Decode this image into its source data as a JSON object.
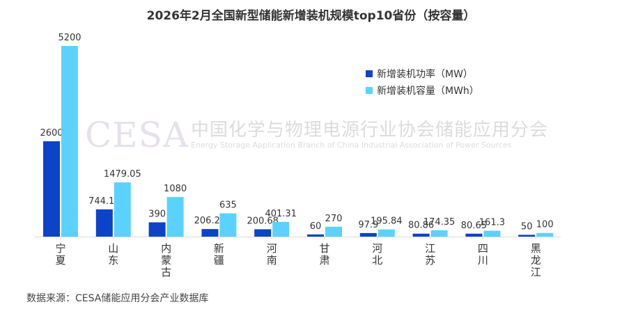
{
  "chart_data": {
    "type": "bar",
    "title": "2026年2月全国新型储能新增装机规模top10省份（按容量）",
    "categories": [
      "宁夏",
      "山东",
      "内蒙古",
      "新疆",
      "河南",
      "甘肃",
      "河北",
      "江苏",
      "四川",
      "黑龙江"
    ],
    "series": [
      {
        "name": "新增装机功率（MW）",
        "color": "#0c43c8",
        "values": [
          2600,
          744.12,
          390,
          206.25,
          200.68,
          60,
          97.9,
          80.86,
          80.65,
          50
        ],
        "labels": [
          "2600",
          "744.12",
          "390",
          "206.25",
          "200.68",
          "60",
          "97.9",
          "80.86",
          "80.65",
          "50"
        ]
      },
      {
        "name": "新增装机容量（MWh）",
        "color": "#5bd2fd",
        "values": [
          5200,
          1479.05,
          1080,
          635,
          401.31,
          270,
          195.84,
          174.35,
          161.3,
          100
        ],
        "labels": [
          "5200",
          "1479.05",
          "1080",
          "635",
          "401.31",
          "270",
          "195.84",
          "174.35",
          "161.3",
          "100"
        ]
      }
    ],
    "ylim": [
      0,
      5200
    ],
    "xlabel": "",
    "ylabel": "",
    "legend_position": "right"
  },
  "watermark": {
    "logo_text": "CESA",
    "cn_name": "中国化学与物理电源行业协会储能应用分会",
    "en_name": "Energy Storage Application Branch of China Industrial Association of Power Sources"
  },
  "source_text": "数据来源：CESA储能应用分会产业数据库"
}
